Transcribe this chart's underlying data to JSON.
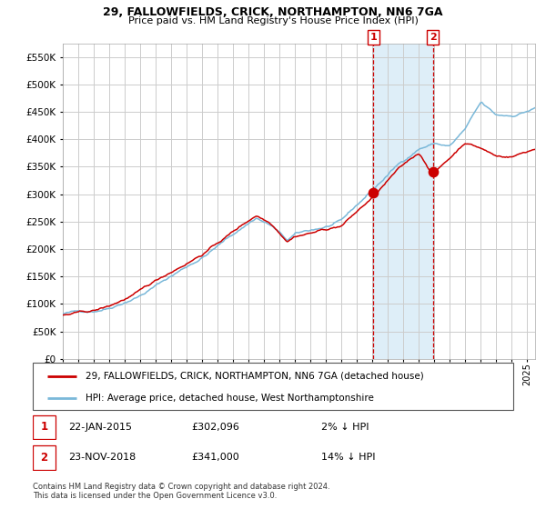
{
  "title1": "29, FALLOWFIELDS, CRICK, NORTHAMPTON, NN6 7GA",
  "title2": "Price paid vs. HM Land Registry's House Price Index (HPI)",
  "legend_line1": "29, FALLOWFIELDS, CRICK, NORTHAMPTON, NN6 7GA (detached house)",
  "legend_line2": "HPI: Average price, detached house, West Northamptonshire",
  "sale1_date": "22-JAN-2015",
  "sale1_price": 302096,
  "sale1_label": "2% ↓ HPI",
  "sale2_date": "23-NOV-2018",
  "sale2_price": 341000,
  "sale2_label": "14% ↓ HPI",
  "footnote": "Contains HM Land Registry data © Crown copyright and database right 2024.\nThis data is licensed under the Open Government Licence v3.0.",
  "hpi_color": "#7ab8d9",
  "price_color": "#cc0000",
  "sale_dot_color": "#cc0000",
  "vline_color": "#cc0000",
  "shade_color": "#deeef8",
  "background_color": "#ffffff",
  "grid_color": "#cccccc",
  "ylim": [
    0,
    575000
  ],
  "yticks": [
    0,
    50000,
    100000,
    150000,
    200000,
    250000,
    300000,
    350000,
    400000,
    450000,
    500000,
    550000
  ],
  "sale1_x": 2015.06,
  "sale2_x": 2018.9
}
